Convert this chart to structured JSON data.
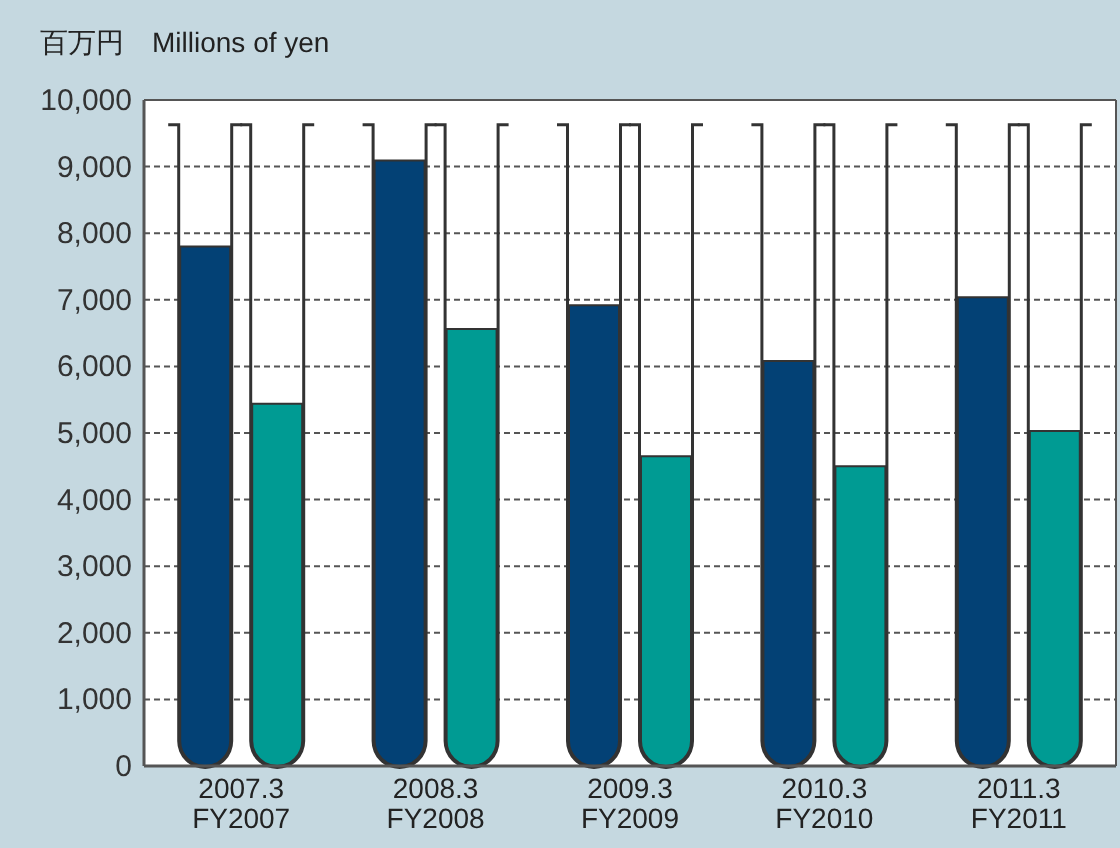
{
  "chart_data": {
    "type": "bar",
    "ylabel": "百万円　Millions of yen",
    "categories": [
      "2007.3\nFY2007",
      "2008.3\nFY2008",
      "2009.3\nFY2009",
      "2010.3\nFY2010",
      "2011.3\nFY2011"
    ],
    "series": [
      {
        "color": "#034175",
        "values": [
          7800,
          9090,
          6920,
          6080,
          7040
        ]
      },
      {
        "color": "#009b93",
        "values": [
          5440,
          6560,
          4650,
          4500,
          5030
        ]
      }
    ],
    "ylim": [
      0,
      10000
    ],
    "yticks": [
      {
        "value": 0,
        "label": "0"
      },
      {
        "value": 1000,
        "label": "1,000"
      },
      {
        "value": 2000,
        "label": "2,000"
      },
      {
        "value": 3000,
        "label": "3,000"
      },
      {
        "value": 4000,
        "label": "4,000"
      },
      {
        "value": 5000,
        "label": "5,000"
      },
      {
        "value": 6000,
        "label": "6,000"
      },
      {
        "value": 7000,
        "label": "7,000"
      },
      {
        "value": 8000,
        "label": "8,000"
      },
      {
        "value": 9000,
        "label": "9,000"
      },
      {
        "value": 10000,
        "label": "10,000"
      }
    ],
    "grid": "y"
  }
}
